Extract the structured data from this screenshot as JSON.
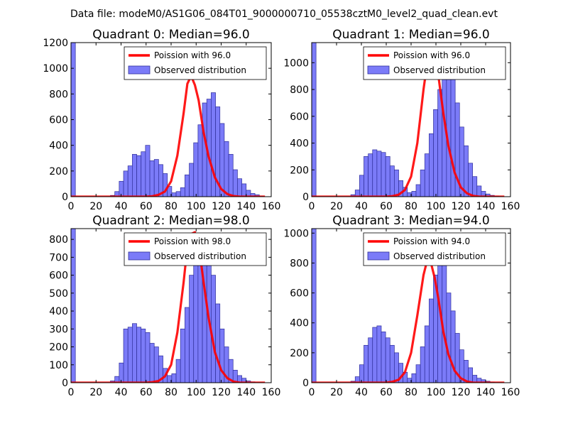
{
  "figure": {
    "suptitle": "Data file: modeM0/AS1G06_084T01_9000000710_05538cztM0_level2_quad_clean.evt"
  },
  "colors": {
    "poisson_line": "#ff0000",
    "histogram_fill": "#7b7bf8",
    "histogram_edge": "#2f2f9a"
  },
  "chart_data": [
    {
      "type": "bar",
      "title": "Quadrant 0: Median=96.0",
      "xlabel": "",
      "ylabel": "",
      "xlim": [
        0,
        160
      ],
      "ylim": [
        0,
        1200
      ],
      "xticks": [
        "0",
        "20",
        "40",
        "60",
        "80",
        "100",
        "120",
        "140",
        "160"
      ],
      "yticks": [
        "0",
        "200",
        "400",
        "600",
        "800",
        "1000",
        "1200"
      ],
      "bin_width": 3.5,
      "bins": [
        0,
        3.5,
        7,
        10.5,
        14,
        17.5,
        21,
        24.5,
        28,
        31.5,
        35,
        38.5,
        42,
        45.5,
        49,
        52.5,
        56,
        59.5,
        63,
        66.5,
        70,
        73.5,
        77,
        80.5,
        84,
        87.5,
        91,
        94.5,
        98,
        101.5,
        105,
        108.5,
        112,
        115.5,
        119,
        122.5,
        126,
        129.5,
        133,
        136.5,
        140,
        143.5,
        147,
        150.5
      ],
      "counts": [
        1200,
        0,
        0,
        0,
        0,
        0,
        0,
        0,
        0,
        10,
        40,
        120,
        200,
        240,
        330,
        320,
        350,
        400,
        280,
        290,
        250,
        180,
        80,
        30,
        40,
        70,
        170,
        260,
        420,
        560,
        730,
        760,
        810,
        700,
        570,
        430,
        330,
        210,
        140,
        100,
        50,
        25,
        15,
        5
      ],
      "poisson": {
        "label": "Poission with 96.0",
        "x": [
          0,
          60,
          65,
          70,
          75,
          80,
          85,
          90,
          93,
          96,
          99,
          102,
          106,
          110,
          115,
          120,
          125,
          130,
          135,
          140,
          145,
          150,
          155
        ],
        "y": [
          0,
          0,
          4,
          15,
          40,
          120,
          320,
          650,
          880,
          940,
          870,
          750,
          500,
          310,
          150,
          60,
          20,
          5,
          0,
          0,
          0,
          0,
          0
        ]
      },
      "legend": {
        "line_label": "Poission with 96.0",
        "hist_label": "Observed distribution",
        "loc": "upper right"
      }
    },
    {
      "type": "bar",
      "title": "Quadrant 1: Median=96.0",
      "xlabel": "",
      "ylabel": "",
      "xlim": [
        0,
        160
      ],
      "ylim": [
        0,
        1150
      ],
      "xticks": [
        "0",
        "20",
        "40",
        "60",
        "80",
        "100",
        "120",
        "140",
        "160"
      ],
      "yticks": [
        "0",
        "200",
        "400",
        "600",
        "800",
        "1000"
      ],
      "bin_width": 3.5,
      "bins": [
        0,
        3.5,
        7,
        10.5,
        14,
        17.5,
        21,
        24.5,
        28,
        31.5,
        35,
        38.5,
        42,
        45.5,
        49,
        52.5,
        56,
        59.5,
        63,
        66.5,
        70,
        73.5,
        77,
        80.5,
        84,
        87.5,
        91,
        94.5,
        98,
        101.5,
        105,
        108.5,
        112,
        115.5,
        119,
        122.5,
        126,
        129.5,
        133,
        136.5,
        140,
        143.5,
        147,
        150.5
      ],
      "counts": [
        1150,
        0,
        0,
        0,
        0,
        0,
        0,
        0,
        0,
        15,
        50,
        160,
        300,
        320,
        350,
        340,
        330,
        300,
        230,
        200,
        120,
        70,
        30,
        40,
        90,
        200,
        320,
        470,
        650,
        800,
        1000,
        1100,
        900,
        700,
        520,
        380,
        250,
        150,
        80,
        40,
        20,
        10,
        5,
        0
      ],
      "poisson": {
        "label": "Poission with 96.0",
        "x": [
          0,
          60,
          65,
          70,
          75,
          80,
          85,
          90,
          93,
          96,
          99,
          102,
          106,
          110,
          115,
          120,
          125,
          130,
          135,
          140,
          145,
          150,
          155
        ],
        "y": [
          0,
          0,
          4,
          15,
          50,
          150,
          400,
          800,
          1000,
          1100,
          1050,
          900,
          620,
          380,
          180,
          70,
          25,
          6,
          0,
          0,
          0,
          0,
          0
        ]
      },
      "legend": {
        "line_label": "Poission with 96.0",
        "hist_label": "Observed distribution",
        "loc": "upper right"
      }
    },
    {
      "type": "bar",
      "title": "Quadrant 2: Median=98.0",
      "xlabel": "",
      "ylabel": "",
      "xlim": [
        0,
        160
      ],
      "ylim": [
        0,
        860
      ],
      "xticks": [
        "0",
        "20",
        "40",
        "60",
        "80",
        "100",
        "120",
        "140",
        "160"
      ],
      "yticks": [
        "0",
        "100",
        "200",
        "300",
        "400",
        "500",
        "600",
        "700",
        "800"
      ],
      "bin_width": 3.5,
      "bins": [
        0,
        3.5,
        7,
        10.5,
        14,
        17.5,
        21,
        24.5,
        28,
        31.5,
        35,
        38.5,
        42,
        45.5,
        49,
        52.5,
        56,
        59.5,
        63,
        66.5,
        70,
        73.5,
        77,
        80.5,
        84,
        87.5,
        91,
        94.5,
        98,
        101.5,
        105,
        108.5,
        112,
        115.5,
        119,
        122.5,
        126,
        129.5,
        133,
        136.5,
        140,
        143.5,
        147,
        150.5
      ],
      "counts": [
        860,
        0,
        0,
        0,
        0,
        0,
        0,
        0,
        0,
        10,
        35,
        110,
        300,
        310,
        330,
        310,
        300,
        280,
        220,
        200,
        150,
        80,
        40,
        50,
        130,
        300,
        420,
        600,
        780,
        820,
        830,
        760,
        600,
        440,
        300,
        200,
        130,
        70,
        40,
        25,
        10,
        5,
        0,
        0
      ],
      "poisson": {
        "label": "Poission with 98.0",
        "x": [
          0,
          60,
          65,
          70,
          75,
          80,
          85,
          90,
          93,
          96,
          99,
          102,
          106,
          110,
          115,
          120,
          125,
          130,
          135,
          140,
          145,
          150,
          155
        ],
        "y": [
          0,
          0,
          3,
          10,
          35,
          100,
          280,
          560,
          760,
          830,
          840,
          770,
          560,
          360,
          170,
          70,
          25,
          6,
          0,
          0,
          0,
          0,
          0
        ]
      },
      "legend": {
        "line_label": "Poission with 98.0",
        "hist_label": "Observed distribution",
        "loc": "upper right"
      }
    },
    {
      "type": "bar",
      "title": "Quadrant 3: Median=94.0",
      "xlabel": "",
      "ylabel": "",
      "xlim": [
        0,
        160
      ],
      "ylim": [
        0,
        1030
      ],
      "xticks": [
        "0",
        "20",
        "40",
        "60",
        "80",
        "100",
        "120",
        "140",
        "160"
      ],
      "yticks": [
        "0",
        "200",
        "400",
        "600",
        "800",
        "1000"
      ],
      "bin_width": 3.5,
      "bins": [
        0,
        3.5,
        7,
        10.5,
        14,
        17.5,
        21,
        24.5,
        28,
        31.5,
        35,
        38.5,
        42,
        45.5,
        49,
        52.5,
        56,
        59.5,
        63,
        66.5,
        70,
        73.5,
        77,
        80.5,
        84,
        87.5,
        91,
        94.5,
        98,
        101.5,
        105,
        108.5,
        112,
        115.5,
        119,
        122.5,
        126,
        129.5,
        133,
        136.5,
        140,
        143.5,
        147,
        150.5
      ],
      "counts": [
        1030,
        0,
        0,
        0,
        0,
        0,
        0,
        0,
        0,
        10,
        40,
        120,
        250,
        300,
        370,
        380,
        340,
        300,
        250,
        200,
        130,
        70,
        30,
        60,
        120,
        240,
        380,
        560,
        720,
        820,
        800,
        600,
        480,
        330,
        220,
        150,
        100,
        50,
        30,
        20,
        10,
        5,
        0,
        0
      ],
      "poisson": {
        "label": "Poission with 94.0",
        "x": [
          0,
          60,
          65,
          70,
          75,
          80,
          85,
          90,
          93,
          96,
          99,
          102,
          106,
          110,
          115,
          120,
          125,
          130,
          135,
          140,
          145,
          150,
          155
        ],
        "y": [
          0,
          0,
          6,
          20,
          70,
          200,
          450,
          720,
          820,
          800,
          700,
          560,
          340,
          190,
          80,
          30,
          8,
          0,
          0,
          0,
          0,
          0,
          0
        ]
      },
      "legend": {
        "line_label": "Poission with 94.0",
        "hist_label": "Observed distribution",
        "loc": "upper right"
      }
    }
  ]
}
